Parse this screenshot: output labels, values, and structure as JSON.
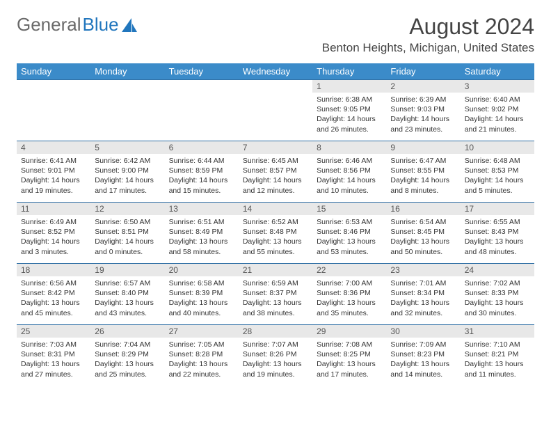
{
  "brand": {
    "part1": "General",
    "part2": "Blue"
  },
  "title": "August 2024",
  "location": "Benton Heights, Michigan, United States",
  "colors": {
    "header_bg": "#3b8bc9",
    "header_text": "#ffffff",
    "daynum_bg": "#e8e8e8",
    "rule": "#2f6fa5",
    "brand_gray": "#6a6a6a",
    "brand_blue": "#2176bd"
  },
  "day_headers": [
    "Sunday",
    "Monday",
    "Tuesday",
    "Wednesday",
    "Thursday",
    "Friday",
    "Saturday"
  ],
  "weeks": [
    [
      {
        "empty": true
      },
      {
        "empty": true
      },
      {
        "empty": true
      },
      {
        "empty": true
      },
      {
        "n": "1",
        "sunrise": "Sunrise: 6:38 AM",
        "sunset": "Sunset: 9:05 PM",
        "day1": "Daylight: 14 hours",
        "day2": "and 26 minutes."
      },
      {
        "n": "2",
        "sunrise": "Sunrise: 6:39 AM",
        "sunset": "Sunset: 9:03 PM",
        "day1": "Daylight: 14 hours",
        "day2": "and 23 minutes."
      },
      {
        "n": "3",
        "sunrise": "Sunrise: 6:40 AM",
        "sunset": "Sunset: 9:02 PM",
        "day1": "Daylight: 14 hours",
        "day2": "and 21 minutes."
      }
    ],
    [
      {
        "n": "4",
        "sunrise": "Sunrise: 6:41 AM",
        "sunset": "Sunset: 9:01 PM",
        "day1": "Daylight: 14 hours",
        "day2": "and 19 minutes."
      },
      {
        "n": "5",
        "sunrise": "Sunrise: 6:42 AM",
        "sunset": "Sunset: 9:00 PM",
        "day1": "Daylight: 14 hours",
        "day2": "and 17 minutes."
      },
      {
        "n": "6",
        "sunrise": "Sunrise: 6:44 AM",
        "sunset": "Sunset: 8:59 PM",
        "day1": "Daylight: 14 hours",
        "day2": "and 15 minutes."
      },
      {
        "n": "7",
        "sunrise": "Sunrise: 6:45 AM",
        "sunset": "Sunset: 8:57 PM",
        "day1": "Daylight: 14 hours",
        "day2": "and 12 minutes."
      },
      {
        "n": "8",
        "sunrise": "Sunrise: 6:46 AM",
        "sunset": "Sunset: 8:56 PM",
        "day1": "Daylight: 14 hours",
        "day2": "and 10 minutes."
      },
      {
        "n": "9",
        "sunrise": "Sunrise: 6:47 AM",
        "sunset": "Sunset: 8:55 PM",
        "day1": "Daylight: 14 hours",
        "day2": "and 8 minutes."
      },
      {
        "n": "10",
        "sunrise": "Sunrise: 6:48 AM",
        "sunset": "Sunset: 8:53 PM",
        "day1": "Daylight: 14 hours",
        "day2": "and 5 minutes."
      }
    ],
    [
      {
        "n": "11",
        "sunrise": "Sunrise: 6:49 AM",
        "sunset": "Sunset: 8:52 PM",
        "day1": "Daylight: 14 hours",
        "day2": "and 3 minutes."
      },
      {
        "n": "12",
        "sunrise": "Sunrise: 6:50 AM",
        "sunset": "Sunset: 8:51 PM",
        "day1": "Daylight: 14 hours",
        "day2": "and 0 minutes."
      },
      {
        "n": "13",
        "sunrise": "Sunrise: 6:51 AM",
        "sunset": "Sunset: 8:49 PM",
        "day1": "Daylight: 13 hours",
        "day2": "and 58 minutes."
      },
      {
        "n": "14",
        "sunrise": "Sunrise: 6:52 AM",
        "sunset": "Sunset: 8:48 PM",
        "day1": "Daylight: 13 hours",
        "day2": "and 55 minutes."
      },
      {
        "n": "15",
        "sunrise": "Sunrise: 6:53 AM",
        "sunset": "Sunset: 8:46 PM",
        "day1": "Daylight: 13 hours",
        "day2": "and 53 minutes."
      },
      {
        "n": "16",
        "sunrise": "Sunrise: 6:54 AM",
        "sunset": "Sunset: 8:45 PM",
        "day1": "Daylight: 13 hours",
        "day2": "and 50 minutes."
      },
      {
        "n": "17",
        "sunrise": "Sunrise: 6:55 AM",
        "sunset": "Sunset: 8:43 PM",
        "day1": "Daylight: 13 hours",
        "day2": "and 48 minutes."
      }
    ],
    [
      {
        "n": "18",
        "sunrise": "Sunrise: 6:56 AM",
        "sunset": "Sunset: 8:42 PM",
        "day1": "Daylight: 13 hours",
        "day2": "and 45 minutes."
      },
      {
        "n": "19",
        "sunrise": "Sunrise: 6:57 AM",
        "sunset": "Sunset: 8:40 PM",
        "day1": "Daylight: 13 hours",
        "day2": "and 43 minutes."
      },
      {
        "n": "20",
        "sunrise": "Sunrise: 6:58 AM",
        "sunset": "Sunset: 8:39 PM",
        "day1": "Daylight: 13 hours",
        "day2": "and 40 minutes."
      },
      {
        "n": "21",
        "sunrise": "Sunrise: 6:59 AM",
        "sunset": "Sunset: 8:37 PM",
        "day1": "Daylight: 13 hours",
        "day2": "and 38 minutes."
      },
      {
        "n": "22",
        "sunrise": "Sunrise: 7:00 AM",
        "sunset": "Sunset: 8:36 PM",
        "day1": "Daylight: 13 hours",
        "day2": "and 35 minutes."
      },
      {
        "n": "23",
        "sunrise": "Sunrise: 7:01 AM",
        "sunset": "Sunset: 8:34 PM",
        "day1": "Daylight: 13 hours",
        "day2": "and 32 minutes."
      },
      {
        "n": "24",
        "sunrise": "Sunrise: 7:02 AM",
        "sunset": "Sunset: 8:33 PM",
        "day1": "Daylight: 13 hours",
        "day2": "and 30 minutes."
      }
    ],
    [
      {
        "n": "25",
        "sunrise": "Sunrise: 7:03 AM",
        "sunset": "Sunset: 8:31 PM",
        "day1": "Daylight: 13 hours",
        "day2": "and 27 minutes."
      },
      {
        "n": "26",
        "sunrise": "Sunrise: 7:04 AM",
        "sunset": "Sunset: 8:29 PM",
        "day1": "Daylight: 13 hours",
        "day2": "and 25 minutes."
      },
      {
        "n": "27",
        "sunrise": "Sunrise: 7:05 AM",
        "sunset": "Sunset: 8:28 PM",
        "day1": "Daylight: 13 hours",
        "day2": "and 22 minutes."
      },
      {
        "n": "28",
        "sunrise": "Sunrise: 7:07 AM",
        "sunset": "Sunset: 8:26 PM",
        "day1": "Daylight: 13 hours",
        "day2": "and 19 minutes."
      },
      {
        "n": "29",
        "sunrise": "Sunrise: 7:08 AM",
        "sunset": "Sunset: 8:25 PM",
        "day1": "Daylight: 13 hours",
        "day2": "and 17 minutes."
      },
      {
        "n": "30",
        "sunrise": "Sunrise: 7:09 AM",
        "sunset": "Sunset: 8:23 PM",
        "day1": "Daylight: 13 hours",
        "day2": "and 14 minutes."
      },
      {
        "n": "31",
        "sunrise": "Sunrise: 7:10 AM",
        "sunset": "Sunset: 8:21 PM",
        "day1": "Daylight: 13 hours",
        "day2": "and 11 minutes."
      }
    ]
  ]
}
